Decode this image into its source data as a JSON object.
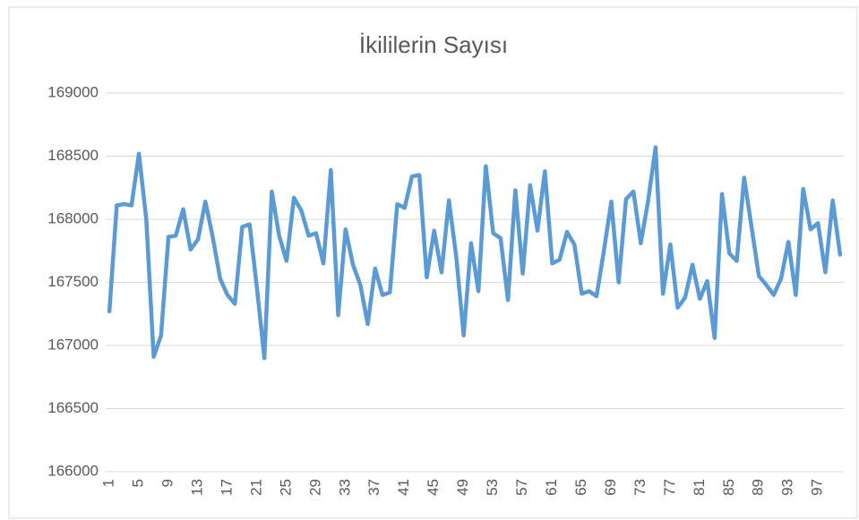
{
  "chart_data": {
    "type": "line",
    "title": "İkililerin Sayısı",
    "categories": [
      1,
      null,
      null,
      null,
      5,
      null,
      null,
      null,
      9,
      null,
      null,
      null,
      13,
      null,
      null,
      null,
      17,
      null,
      null,
      null,
      21,
      null,
      null,
      null,
      25,
      null,
      null,
      null,
      29,
      null,
      null,
      null,
      33,
      null,
      null,
      null,
      37,
      null,
      null,
      null,
      41,
      null,
      null,
      null,
      45,
      null,
      null,
      null,
      49,
      null,
      null,
      null,
      53,
      null,
      null,
      null,
      57,
      null,
      null,
      null,
      61,
      null,
      null,
      null,
      65,
      null,
      null,
      null,
      69,
      null,
      null,
      null,
      73,
      null,
      null,
      null,
      77,
      null,
      null,
      null,
      81,
      null,
      null,
      null,
      85,
      null,
      null,
      null,
      89,
      null,
      null,
      null,
      93,
      null,
      null,
      null,
      97,
      null,
      null,
      null
    ],
    "series": [
      {
        "color": "#5b9bd5",
        "values": [
          167270,
          168110,
          168120,
          168110,
          168520,
          168000,
          166910,
          167080,
          167860,
          167870,
          168080,
          167760,
          167840,
          168140,
          167860,
          167530,
          167400,
          167330,
          167940,
          167960,
          167450,
          166900,
          168220,
          167870,
          167670,
          168170,
          168070,
          167870,
          167890,
          167650,
          168390,
          167240,
          167920,
          167640,
          167480,
          167170,
          167610,
          167400,
          167420,
          168120,
          168090,
          168340,
          168350,
          167540,
          167910,
          167580,
          168150,
          167700,
          167080,
          167810,
          167430,
          168420,
          167890,
          167850,
          167360,
          168230,
          167570,
          168270,
          167910,
          168380,
          167650,
          167680,
          167900,
          167800,
          167410,
          167430,
          167390,
          167750,
          168140,
          167500,
          168160,
          168220,
          167810,
          168150,
          168570,
          167410,
          167800,
          167300,
          167380,
          167640,
          167370,
          167510,
          167060,
          168200,
          167730,
          167670,
          168330,
          167940,
          167550,
          167480,
          167400,
          167530,
          167820,
          167400,
          168240,
          167920,
          167970,
          167580,
          168150,
          167720
        ]
      }
    ],
    "ylim": [
      166000,
      169000
    ],
    "yticks": [
      166000,
      166500,
      167000,
      167500,
      168000,
      168500,
      169000
    ],
    "grid": true
  }
}
